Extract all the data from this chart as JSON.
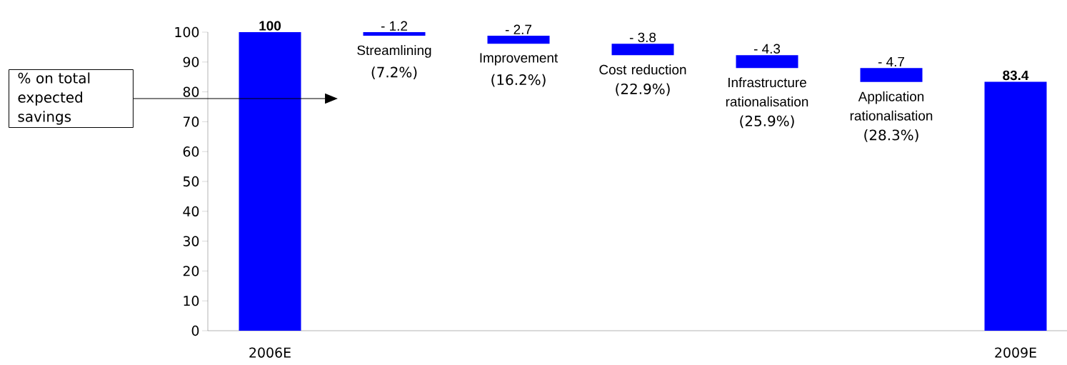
{
  "chart_data": {
    "type": "bar",
    "categories": [
      "2006E",
      "Streamlining",
      "Improvement",
      "Cost reduction",
      "Infrastructure rationalisation",
      "Application rationalisation",
      "2009E"
    ],
    "values": [
      100,
      -1.2,
      -2.7,
      -3.8,
      -4.3,
      -4.7,
      83.4
    ],
    "base": [
      0,
      100,
      98.8,
      96.1,
      92.3,
      88,
      0
    ],
    "value_labels": [
      "100",
      "- 1.2",
      "- 2.7",
      "- 3.8",
      "- 4.3",
      "- 4.7",
      "83.4"
    ],
    "color": "#0000ff",
    "ylim": [
      0,
      100
    ],
    "yticks": [
      0,
      10,
      20,
      30,
      40,
      50,
      60,
      70,
      80,
      90,
      100
    ],
    "annotations": [
      "% on total expected savings",
      "(7.2%)",
      "(16.2%)",
      "(22.9%)",
      "(25.9%)",
      "(28.3%)"
    ]
  }
}
